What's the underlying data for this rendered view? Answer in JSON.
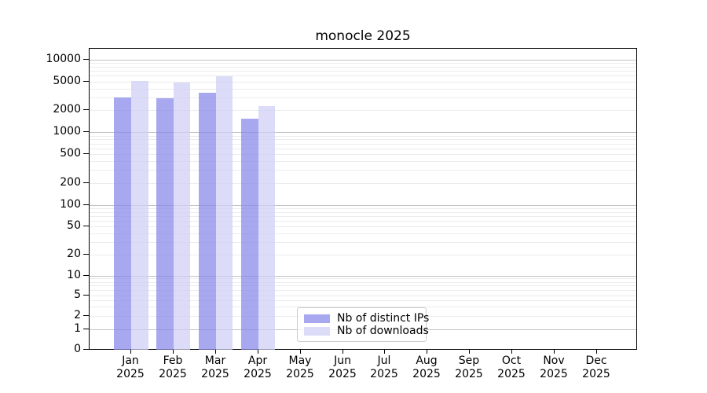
{
  "title": "monocle 2025",
  "chart_data": {
    "type": "bar",
    "title": "monocle 2025",
    "x_categories": [
      "Jan",
      "Feb",
      "Mar",
      "Apr",
      "May",
      "Jun",
      "Jul",
      "Aug",
      "Sep",
      "Oct",
      "Nov",
      "Dec"
    ],
    "x_year": "2025",
    "series": [
      {
        "name": "Nb of distinct IPs",
        "color": "#a8a8f0",
        "fill": "rgba(134,134,234,0.72)",
        "values": [
          3000,
          2950,
          3500,
          1550,
          null,
          null,
          null,
          null,
          null,
          null,
          null,
          null
        ]
      },
      {
        "name": "Nb of downloads",
        "color": "#dcdcf8",
        "fill": "rgba(206,206,245,0.72)",
        "values": [
          5100,
          4850,
          5900,
          2300,
          null,
          null,
          null,
          null,
          null,
          null,
          null,
          null
        ]
      }
    ],
    "yticks": [
      0,
      1,
      2,
      5,
      10,
      20,
      50,
      100,
      200,
      500,
      1000,
      2000,
      5000,
      10000
    ],
    "yscale": "symlog",
    "ylim": [
      0,
      13000
    ],
    "grid": true,
    "legend_position": "lower center"
  }
}
